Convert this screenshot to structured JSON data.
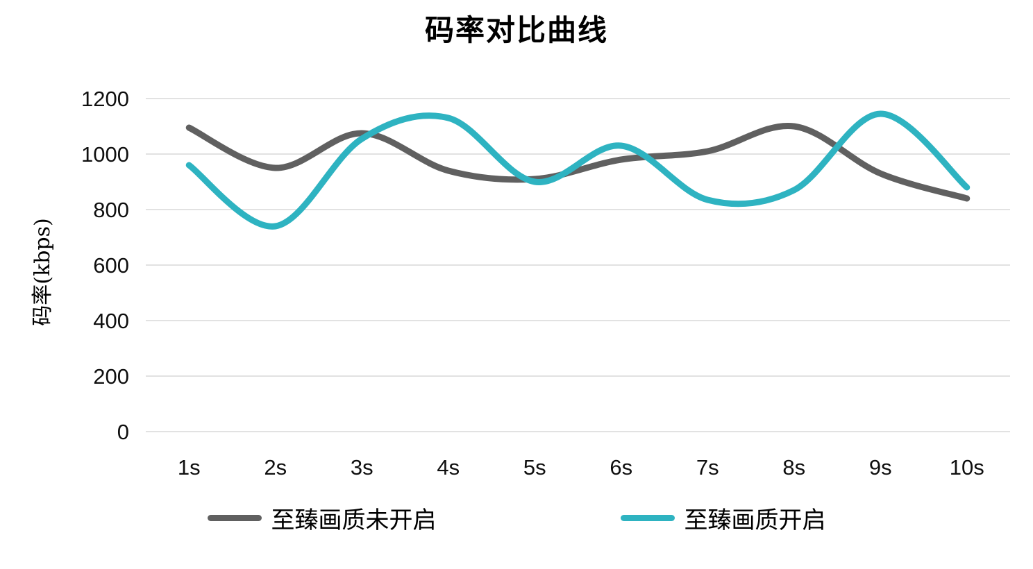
{
  "title": "码率对比曲线",
  "chart_data": {
    "type": "line",
    "title": "码率对比曲线",
    "xlabel": "",
    "ylabel": "码率(kbps)",
    "categories": [
      "1s",
      "2s",
      "3s",
      "4s",
      "5s",
      "6s",
      "7s",
      "8s",
      "9s",
      "10s"
    ],
    "series": [
      {
        "name": "至臻画质未开启",
        "color": "#606060",
        "values": [
          1095,
          950,
          1075,
          940,
          910,
          980,
          1010,
          1100,
          930,
          840
        ]
      },
      {
        "name": "至臻画质开启",
        "color": "#2eb3c1",
        "values": [
          960,
          740,
          1055,
          1130,
          900,
          1030,
          835,
          870,
          1145,
          880
        ]
      }
    ],
    "ylim": [
      0,
      1200
    ],
    "yticks": [
      0,
      200,
      400,
      600,
      800,
      1000,
      1200
    ],
    "grid": "horizontal",
    "grid_color": "#e2e2e2",
    "tick_text_color": "#0f0f0f",
    "legend_position": "bottom",
    "smooth": true,
    "line_width": 9
  }
}
